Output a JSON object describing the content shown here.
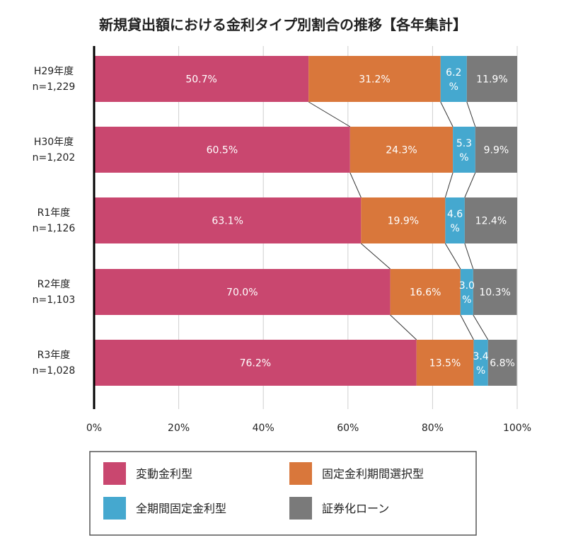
{
  "chart_data": {
    "type": "bar",
    "orientation": "horizontal",
    "stacked": true,
    "title": "新規貸出額における金利タイプ別割合の推移【各年集計】",
    "categories": [
      {
        "label": "H29年度",
        "n": "n=1,229"
      },
      {
        "label": "H30年度",
        "n": "n=1,202"
      },
      {
        "label": "R1年度",
        "n": "n=1,126"
      },
      {
        "label": "R2年度",
        "n": "n=1,103"
      },
      {
        "label": "R3年度",
        "n": "n=1,028"
      }
    ],
    "series": [
      {
        "name": "変動金利型",
        "color": "#c9476f",
        "values": [
          50.7,
          60.5,
          63.1,
          70.0,
          76.2
        ],
        "labels": [
          "50.7%",
          "60.5%",
          "63.1%",
          "70.0%",
          "76.2%"
        ]
      },
      {
        "name": "固定金利期間選択型",
        "color": "#d9773b",
        "values": [
          31.2,
          24.3,
          19.9,
          16.6,
          13.5
        ],
        "labels": [
          "31.2%",
          "24.3%",
          "19.9%",
          "16.6%",
          "13.5%"
        ]
      },
      {
        "name": "全期間固定金利型",
        "color": "#45a8cf",
        "values": [
          6.2,
          5.3,
          4.6,
          3.0,
          3.4
        ],
        "labels": [
          "6.2%",
          "5.3%",
          "4.6%",
          "3.0%",
          "3.4%"
        ]
      },
      {
        "name": "証券化ローン",
        "color": "#7a7a7a",
        "values": [
          11.9,
          9.9,
          12.4,
          10.3,
          6.8
        ],
        "labels": [
          "11.9%",
          "9.9%",
          "12.4%",
          "10.3%",
          "6.8%"
        ]
      }
    ],
    "x_ticks": [
      "0%",
      "20%",
      "40%",
      "60%",
      "80%",
      "100%"
    ],
    "xlim": [
      0,
      100
    ],
    "grid": true,
    "legend_position": "bottom"
  }
}
